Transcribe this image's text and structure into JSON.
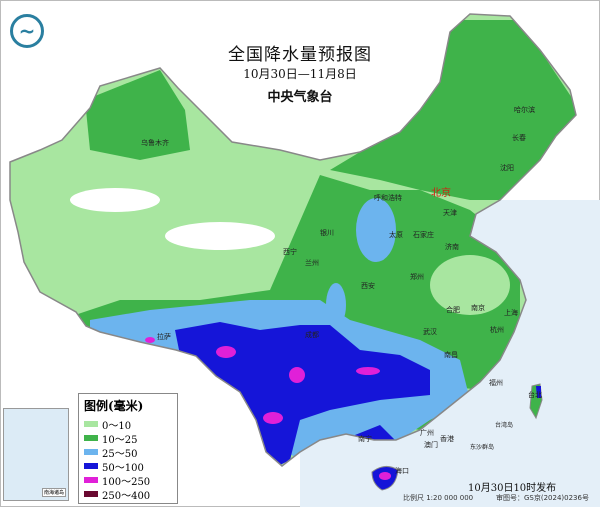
{
  "header": {
    "title": "全国降水量预报图",
    "period": "10月30日—11月8日",
    "issuer": "中央气象台"
  },
  "logo": {
    "icon": "cma-dragon-logo",
    "color": "#2a7fa0"
  },
  "legend": {
    "title": "图例(毫米)",
    "items": [
      {
        "label": "0～10",
        "color": "#a8e6a0"
      },
      {
        "label": "10～25",
        "color": "#3fb34a"
      },
      {
        "label": "25～50",
        "color": "#6cb4ee"
      },
      {
        "label": "50～100",
        "color": "#1515d8"
      },
      {
        "label": "100～250",
        "color": "#e020d8"
      },
      {
        "label": "250～400",
        "color": "#6a0830"
      }
    ]
  },
  "cities": [
    {
      "name": "乌鲁木齐"
    },
    {
      "name": "西宁"
    },
    {
      "name": "兰州"
    },
    {
      "name": "银川"
    },
    {
      "name": "呼和浩特"
    },
    {
      "name": "北京"
    },
    {
      "name": "天津"
    },
    {
      "name": "太原"
    },
    {
      "name": "石家庄"
    },
    {
      "name": "济南"
    },
    {
      "name": "郑州"
    },
    {
      "name": "西安"
    },
    {
      "name": "哈尔滨"
    },
    {
      "name": "长春"
    },
    {
      "name": "沈阳"
    },
    {
      "name": "拉萨"
    },
    {
      "name": "成都"
    },
    {
      "name": "武汉"
    },
    {
      "name": "合肥"
    },
    {
      "name": "南京"
    },
    {
      "name": "上海"
    },
    {
      "name": "杭州"
    },
    {
      "name": "南昌"
    },
    {
      "name": "福州"
    },
    {
      "name": "广州"
    },
    {
      "name": "澳门"
    },
    {
      "name": "香港"
    },
    {
      "name": "南宁"
    },
    {
      "name": "海口"
    },
    {
      "name": "台北"
    },
    {
      "name": "台湾岛"
    },
    {
      "name": "东沙群岛"
    }
  ],
  "inset": {
    "label": "南海诸岛"
  },
  "footer": {
    "published": "10月30日10时发布",
    "scale": "比例尺 1:20 000 000",
    "approval": "审图号：GS京(2024)0236号"
  }
}
